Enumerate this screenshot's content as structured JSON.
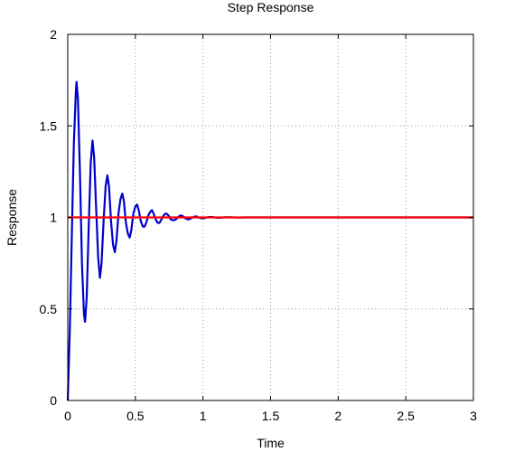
{
  "chart_data": {
    "type": "line",
    "title": "Step Response",
    "xlabel": "Time",
    "ylabel": "Response",
    "xlim": [
      0,
      3
    ],
    "ylim": [
      0,
      2
    ],
    "x_ticks": [
      "0",
      "0.5",
      "1",
      "1.5",
      "2",
      "2.5",
      "3"
    ],
    "y_ticks": [
      "0",
      "0.5",
      "1",
      "1.5",
      "2"
    ],
    "grid": true,
    "grid_style": "dotted",
    "series": [
      {
        "color": "#0000cc",
        "points": [
          [
            0.0,
            0.0
          ],
          [
            0.015,
            0.38
          ],
          [
            0.03,
            0.9
          ],
          [
            0.045,
            1.4
          ],
          [
            0.06,
            1.69
          ],
          [
            0.065,
            1.74
          ],
          [
            0.075,
            1.65
          ],
          [
            0.09,
            1.25
          ],
          [
            0.105,
            0.75
          ],
          [
            0.12,
            0.47
          ],
          [
            0.128,
            0.43
          ],
          [
            0.14,
            0.56
          ],
          [
            0.155,
            0.95
          ],
          [
            0.17,
            1.3
          ],
          [
            0.183,
            1.42
          ],
          [
            0.195,
            1.33
          ],
          [
            0.21,
            1.05
          ],
          [
            0.225,
            0.78
          ],
          [
            0.238,
            0.67
          ],
          [
            0.25,
            0.75
          ],
          [
            0.265,
            0.98
          ],
          [
            0.28,
            1.17
          ],
          [
            0.293,
            1.23
          ],
          [
            0.305,
            1.17
          ],
          [
            0.32,
            0.98
          ],
          [
            0.335,
            0.85
          ],
          [
            0.348,
            0.81
          ],
          [
            0.36,
            0.87
          ],
          [
            0.375,
            1.02
          ],
          [
            0.39,
            1.1
          ],
          [
            0.403,
            1.13
          ],
          [
            0.415,
            1.09
          ],
          [
            0.43,
            0.97
          ],
          [
            0.445,
            0.91
          ],
          [
            0.458,
            0.89
          ],
          [
            0.47,
            0.93
          ],
          [
            0.485,
            1.02
          ],
          [
            0.5,
            1.06
          ],
          [
            0.513,
            1.07
          ],
          [
            0.525,
            1.04
          ],
          [
            0.54,
            0.98
          ],
          [
            0.555,
            0.95
          ],
          [
            0.568,
            0.95
          ],
          [
            0.58,
            0.97
          ],
          [
            0.595,
            1.01
          ],
          [
            0.61,
            1.03
          ],
          [
            0.623,
            1.04
          ],
          [
            0.635,
            1.02
          ],
          [
            0.65,
            0.99
          ],
          [
            0.665,
            0.97
          ],
          [
            0.678,
            0.97
          ],
          [
            0.69,
            0.985
          ],
          [
            0.705,
            1.005
          ],
          [
            0.72,
            1.02
          ],
          [
            0.733,
            1.02
          ],
          [
            0.745,
            1.01
          ],
          [
            0.76,
            0.99
          ],
          [
            0.775,
            0.985
          ],
          [
            0.788,
            0.985
          ],
          [
            0.8,
            0.99
          ],
          [
            0.815,
            1.0
          ],
          [
            0.83,
            1.01
          ],
          [
            0.843,
            1.01
          ],
          [
            0.855,
            1.005
          ],
          [
            0.87,
            0.995
          ],
          [
            0.885,
            0.99
          ],
          [
            0.898,
            0.99
          ],
          [
            0.91,
            0.995
          ],
          [
            0.925,
            1.0
          ],
          [
            0.94,
            1.005
          ],
          [
            0.953,
            1.005
          ],
          [
            0.965,
            1.0
          ],
          [
            0.98,
            0.997
          ],
          [
            0.995,
            0.995
          ],
          [
            1.01,
            0.996
          ],
          [
            1.04,
            1.002
          ],
          [
            1.07,
            1.002
          ],
          [
            1.1,
            0.998
          ],
          [
            1.13,
            0.998
          ],
          [
            1.16,
            1.001
          ],
          [
            1.2,
            1.001
          ],
          [
            1.25,
            0.999
          ],
          [
            1.3,
            1.0
          ],
          [
            1.4,
            1.0
          ],
          [
            1.6,
            1.0
          ],
          [
            2.0,
            1.0
          ],
          [
            2.5,
            1.0
          ],
          [
            3.0,
            1.0
          ]
        ]
      },
      {
        "color": "#ff0000",
        "points": [
          [
            0,
            1
          ],
          [
            3,
            1
          ]
        ]
      }
    ]
  }
}
